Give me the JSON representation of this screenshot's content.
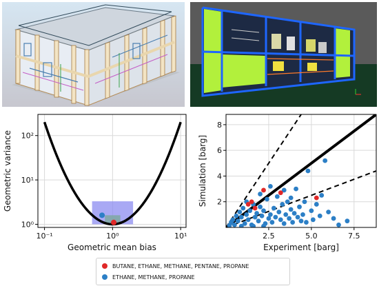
{
  "figure": {
    "render_left": "BIM model render (light background)",
    "render_right": "BIM model render (dark background)"
  },
  "chart_data": [
    {
      "type": "scatter",
      "xscale": "log",
      "yscale": "log",
      "xlabel": "Geometric mean bias",
      "ylabel": "Geometric variance",
      "xlim": [
        0.08,
        12
      ],
      "ylim": [
        0.85,
        300
      ],
      "xticks": [
        {
          "v": 0.1,
          "label": "10⁻¹"
        },
        {
          "v": 1,
          "label": "10⁰"
        },
        {
          "v": 10,
          "label": "10¹"
        }
      ],
      "yticks": [
        {
          "v": 1,
          "label": "10⁰"
        },
        {
          "v": 10,
          "label": "10¹"
        },
        {
          "v": 100,
          "label": "10²"
        }
      ],
      "grid": true,
      "curve": "exp(ln(MG)^2)",
      "regions": [
        {
          "name": "outer",
          "x": [
            0.5,
            2.0
          ],
          "y": [
            1.0,
            3.3
          ],
          "color": "#8c8cf0"
        },
        {
          "name": "inner",
          "x": [
            0.77,
            1.3
          ],
          "y": [
            1.0,
            1.6
          ],
          "color": "#7aa897"
        }
      ],
      "series": [
        {
          "color": "#2c7fc6",
          "points": [
            [
              0.7,
              1.6
            ]
          ]
        },
        {
          "color": "#e02828",
          "points": [
            [
              1.04,
              1.1
            ]
          ]
        }
      ]
    },
    {
      "type": "scatter",
      "xlabel": "Experiment [barg]",
      "ylabel": "Simulation [barg]",
      "xlim": [
        0,
        8.8
      ],
      "ylim": [
        0,
        8.8
      ],
      "xticks": [
        2.5,
        5.0,
        7.5
      ],
      "yticks": [
        2,
        4,
        6,
        8
      ],
      "grid": true,
      "reference_lines": [
        {
          "slope": 1,
          "style": "solid"
        },
        {
          "slope": 2,
          "style": "dashed"
        },
        {
          "slope": 0.5,
          "style": "dashed"
        }
      ],
      "series": [
        {
          "name": "ETHANE, METHANE, PROPANE",
          "color": "#2c7fc6",
          "points": [
            [
              0.2,
              0.15
            ],
            [
              0.3,
              0.4
            ],
            [
              0.4,
              0.6
            ],
            [
              0.5,
              0.2
            ],
            [
              0.6,
              0.9
            ],
            [
              0.7,
              0.5
            ],
            [
              0.8,
              1.2
            ],
            [
              0.9,
              0.8
            ],
            [
              1.0,
              1.5
            ],
            [
              1.1,
              0.3
            ],
            [
              1.2,
              1.0
            ],
            [
              1.3,
              0.6
            ],
            [
              1.4,
              1.3
            ],
            [
              1.5,
              0.2
            ],
            [
              1.6,
              1.8
            ],
            [
              1.7,
              0.8
            ],
            [
              1.8,
              1.1
            ],
            [
              1.9,
              0.5
            ],
            [
              2.0,
              1.6
            ],
            [
              2.1,
              0.9
            ],
            [
              2.2,
              1.3
            ],
            [
              2.3,
              0.3
            ],
            [
              2.4,
              2.2
            ],
            [
              2.5,
              0.7
            ],
            [
              2.6,
              1.0
            ],
            [
              2.7,
              0.4
            ],
            [
              2.8,
              1.5
            ],
            [
              2.9,
              0.8
            ],
            [
              3.0,
              2.4
            ],
            [
              3.1,
              1.2
            ],
            [
              3.2,
              0.6
            ],
            [
              3.3,
              1.8
            ],
            [
              3.4,
              0.3
            ],
            [
              3.5,
              1.0
            ],
            [
              3.6,
              2.0
            ],
            [
              3.7,
              0.7
            ],
            [
              3.8,
              1.4
            ],
            [
              3.9,
              0.4
            ],
            [
              4.0,
              1.1
            ],
            [
              4.1,
              3.0
            ],
            [
              4.2,
              0.8
            ],
            [
              4.3,
              1.6
            ],
            [
              4.4,
              0.5
            ],
            [
              4.5,
              1.0
            ],
            [
              4.6,
              2.0
            ],
            [
              4.7,
              0.4
            ],
            [
              4.8,
              4.4
            ],
            [
              5.0,
              1.3
            ],
            [
              5.1,
              0.6
            ],
            [
              5.3,
              1.8
            ],
            [
              5.5,
              0.9
            ],
            [
              5.6,
              2.5
            ],
            [
              5.8,
              5.2
            ],
            [
              6.0,
              1.2
            ],
            [
              6.3,
              0.7
            ],
            [
              6.6,
              0.2
            ],
            [
              7.1,
              0.5
            ],
            [
              1.2,
              2.0
            ],
            [
              2.0,
              2.6
            ],
            [
              2.6,
              3.2
            ],
            [
              3.4,
              2.9
            ],
            [
              3.8,
              2.3
            ],
            [
              1.6,
              0.1
            ],
            [
              2.2,
              0.1
            ],
            [
              0.9,
              0.1
            ]
          ]
        },
        {
          "name": "BUTANE, ETHANE, METHANE, PENTANE, PROPANE",
          "color": "#e02828",
          "points": [
            [
              1.3,
              1.8
            ],
            [
              1.5,
              2.0
            ],
            [
              2.2,
              2.9
            ],
            [
              3.2,
              2.7
            ],
            [
              5.3,
              2.3
            ],
            [
              1.7,
              1.5
            ]
          ]
        }
      ]
    }
  ],
  "legend": {
    "items": [
      {
        "label": "BUTANE, ETHANE, METHANE, PENTANE, PROPANE",
        "color": "#e02828"
      },
      {
        "label": "ETHANE, METHANE, PROPANE",
        "color": "#2c7fc6"
      }
    ]
  }
}
